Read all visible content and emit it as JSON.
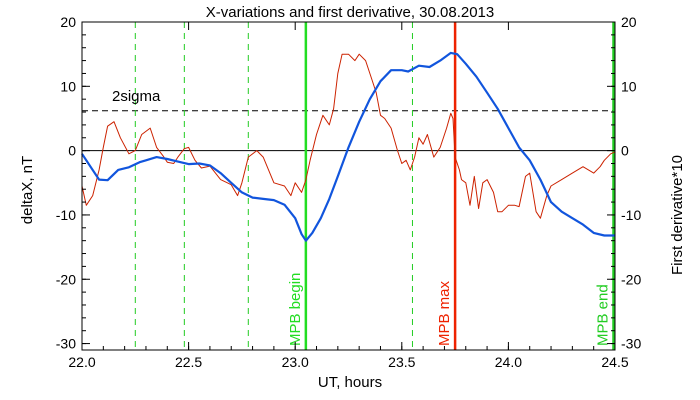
{
  "chart_data": {
    "type": "line",
    "title": "X-variations and first derivative, 30.08.2013",
    "xlabel": "UT, hours",
    "ylabel_left": "deltaX, nT",
    "ylabel_right": "First derivative*10",
    "xlim": [
      22.0,
      24.5
    ],
    "ylim": [
      -31,
      20
    ],
    "xticks": [
      "22.0",
      "22.5",
      "23.0",
      "23.5",
      "24.0",
      "24.5"
    ],
    "yticks": [
      "20",
      "10",
      "0",
      "-10",
      "-20",
      "-30"
    ],
    "colors": {
      "deltaX": "#1155dd",
      "derivative": "#cc2200",
      "dashed_markers": "#22cc22",
      "mpb_begin": "#22dd22",
      "mpb_max": "#ee2200",
      "mpb_end": "#22cc22",
      "axis_left": "#1155dd",
      "axis_right": "#dd2200"
    },
    "series": [
      {
        "points": [
          [
            22.0,
            -0.5
          ],
          [
            22.04,
            -2.5
          ],
          [
            22.08,
            -4.5
          ],
          [
            22.12,
            -4.6
          ],
          [
            22.17,
            -3.0
          ],
          [
            22.22,
            -2.6
          ],
          [
            22.27,
            -1.8
          ],
          [
            22.3,
            -1.5
          ],
          [
            22.35,
            -1.0
          ],
          [
            22.4,
            -1.3
          ],
          [
            22.45,
            -1.7
          ],
          [
            22.5,
            -2.1
          ],
          [
            22.55,
            -2.0
          ],
          [
            22.6,
            -2.3
          ],
          [
            22.65,
            -3.5
          ],
          [
            22.7,
            -5.0
          ],
          [
            22.75,
            -6.5
          ],
          [
            22.8,
            -7.3
          ],
          [
            22.85,
            -7.5
          ],
          [
            22.9,
            -7.7
          ],
          [
            22.95,
            -8.4
          ],
          [
            23.0,
            -10.5
          ],
          [
            23.03,
            -13.0
          ],
          [
            23.05,
            -14.0
          ],
          [
            23.08,
            -12.8
          ],
          [
            23.12,
            -10.5
          ],
          [
            23.16,
            -7.5
          ],
          [
            23.2,
            -4.0
          ],
          [
            23.25,
            0.5
          ],
          [
            23.3,
            4.5
          ],
          [
            23.35,
            8.0
          ],
          [
            23.4,
            10.8
          ],
          [
            23.45,
            12.5
          ],
          [
            23.5,
            12.5
          ],
          [
            23.53,
            12.3
          ],
          [
            23.58,
            13.2
          ],
          [
            23.63,
            13.0
          ],
          [
            23.68,
            14.0
          ],
          [
            23.73,
            15.2
          ],
          [
            23.76,
            15.0
          ],
          [
            23.8,
            13.5
          ],
          [
            23.85,
            11.5
          ],
          [
            23.9,
            9.0
          ],
          [
            23.95,
            6.5
          ],
          [
            24.0,
            3.5
          ],
          [
            24.05,
            0.5
          ],
          [
            24.1,
            -1.5
          ],
          [
            24.15,
            -4.5
          ],
          [
            24.2,
            -8.0
          ],
          [
            24.25,
            -9.5
          ],
          [
            24.3,
            -10.5
          ],
          [
            24.35,
            -11.5
          ],
          [
            24.4,
            -12.8
          ],
          [
            24.45,
            -13.2
          ],
          [
            24.5,
            -13.2
          ]
        ]
      },
      {
        "points": [
          [
            22.0,
            -5.5
          ],
          [
            22.02,
            -8.5
          ],
          [
            22.05,
            -7.0
          ],
          [
            22.08,
            -3.0
          ],
          [
            22.1,
            0.5
          ],
          [
            22.12,
            3.8
          ],
          [
            22.15,
            4.5
          ],
          [
            22.18,
            2.0
          ],
          [
            22.22,
            -0.5
          ],
          [
            22.25,
            0.0
          ],
          [
            22.28,
            2.5
          ],
          [
            22.32,
            3.5
          ],
          [
            22.35,
            0.5
          ],
          [
            22.38,
            -0.8
          ],
          [
            22.4,
            -1.8
          ],
          [
            22.43,
            -2.0
          ],
          [
            22.45,
            -1.0
          ],
          [
            22.48,
            0.3
          ],
          [
            22.5,
            0.5
          ],
          [
            22.53,
            -1.5
          ],
          [
            22.56,
            -2.7
          ],
          [
            22.6,
            -2.4
          ],
          [
            22.65,
            -4.5
          ],
          [
            22.7,
            -5.3
          ],
          [
            22.73,
            -7.0
          ],
          [
            22.75,
            -5.0
          ],
          [
            22.78,
            -1.0
          ],
          [
            22.82,
            0.0
          ],
          [
            22.85,
            -1.0
          ],
          [
            22.9,
            -5.0
          ],
          [
            22.95,
            -5.5
          ],
          [
            22.98,
            -7.0
          ],
          [
            23.0,
            -5.0
          ],
          [
            23.03,
            -6.5
          ],
          [
            23.05,
            -4.5
          ],
          [
            23.07,
            -1.5
          ],
          [
            23.1,
            2.5
          ],
          [
            23.13,
            5.5
          ],
          [
            23.16,
            4.0
          ],
          [
            23.18,
            6.5
          ],
          [
            23.2,
            12.0
          ],
          [
            23.22,
            15.0
          ],
          [
            23.25,
            15.0
          ],
          [
            23.28,
            14.0
          ],
          [
            23.3,
            15.0
          ],
          [
            23.33,
            14.0
          ],
          [
            23.36,
            11.0
          ],
          [
            23.38,
            9.0
          ],
          [
            23.4,
            5.5
          ],
          [
            23.42,
            5.0
          ],
          [
            23.45,
            3.5
          ],
          [
            23.48,
            0.0
          ],
          [
            23.5,
            -2.0
          ],
          [
            23.52,
            -1.5
          ],
          [
            23.54,
            -3.0
          ],
          [
            23.56,
            -1.0
          ],
          [
            23.58,
            2.0
          ],
          [
            23.6,
            1.0
          ],
          [
            23.62,
            2.5
          ],
          [
            23.65,
            -1.0
          ],
          [
            23.68,
            0.5
          ],
          [
            23.71,
            3.5
          ],
          [
            23.73,
            5.8
          ],
          [
            23.74,
            5.0
          ],
          [
            23.75,
            -1.0
          ],
          [
            23.77,
            -3.0
          ],
          [
            23.78,
            -4.5
          ],
          [
            23.8,
            -5.0
          ],
          [
            23.82,
            -8.5
          ],
          [
            23.84,
            -4.0
          ],
          [
            23.86,
            -9.0
          ],
          [
            23.88,
            -5.0
          ],
          [
            23.9,
            -4.5
          ],
          [
            23.93,
            -6.5
          ],
          [
            23.95,
            -9.5
          ],
          [
            23.97,
            -9.5
          ],
          [
            24.0,
            -8.5
          ],
          [
            24.03,
            -8.5
          ],
          [
            24.05,
            -8.7
          ],
          [
            24.08,
            -4.0
          ],
          [
            24.1,
            -3.5
          ],
          [
            24.13,
            -9.5
          ],
          [
            24.15,
            -10.5
          ],
          [
            24.18,
            -7.0
          ],
          [
            24.2,
            -5.5
          ],
          [
            24.25,
            -4.5
          ],
          [
            24.3,
            -3.5
          ],
          [
            24.35,
            -2.5
          ],
          [
            24.4,
            -3.5
          ],
          [
            24.43,
            -2.5
          ],
          [
            24.45,
            -1.5
          ],
          [
            24.48,
            -0.5
          ],
          [
            24.5,
            -0.2
          ]
        ]
      }
    ],
    "threshold": {
      "label": "2sigma",
      "value": 6.2
    },
    "zero_line": 0,
    "dashed_markers_x": [
      22.25,
      22.48,
      22.78,
      23.55
    ],
    "events": [
      {
        "label": "MPB begin",
        "x": 23.05,
        "color_key": "mpb_begin"
      },
      {
        "label": "MPB max",
        "x": 23.75,
        "color_key": "mpb_max"
      },
      {
        "label": "MPB end",
        "x": 24.5,
        "color_key": "mpb_end"
      }
    ]
  }
}
